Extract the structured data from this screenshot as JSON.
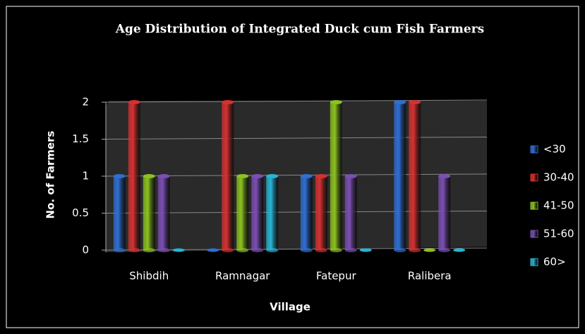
{
  "chart_data": {
    "type": "bar",
    "title": "Age Distribution of Integrated Duck cum Fish Farmers",
    "x_label": "Village",
    "y_label": "No. of Farmers",
    "categories": [
      "Shibdih",
      "Ramnagar",
      "Fatepur",
      "Ralibera"
    ],
    "series": [
      {
        "name": "<30",
        "color": "#2f6fd2",
        "values": [
          1,
          0,
          1,
          2
        ]
      },
      {
        "name": "30-40",
        "color": "#d63131",
        "values": [
          2,
          2,
          1,
          2
        ]
      },
      {
        "name": "41-50",
        "color": "#8cc21f",
        "values": [
          1,
          1,
          2,
          0
        ]
      },
      {
        "name": "51-60",
        "color": "#7b4fb3",
        "values": [
          1,
          1,
          1,
          1
        ]
      },
      {
        "name": "60>",
        "color": "#27b5d6",
        "values": [
          0,
          1,
          0,
          0
        ]
      }
    ],
    "ylim": [
      0,
      2
    ],
    "yticks": [
      0,
      0.5,
      1,
      1.5,
      2
    ],
    "grid": true,
    "legend": "right"
  }
}
